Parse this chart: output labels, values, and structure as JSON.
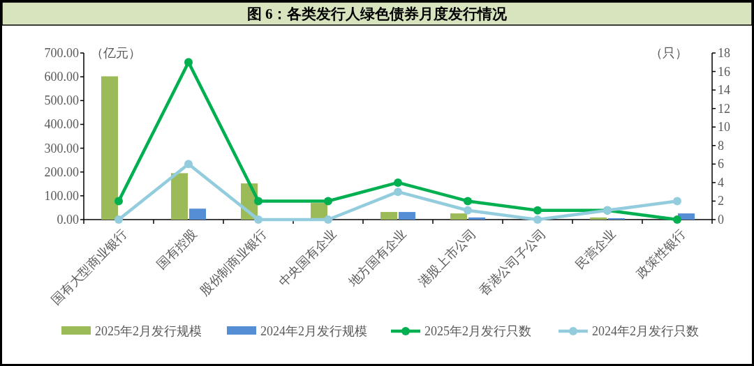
{
  "chart_data": {
    "type": "bar",
    "title": "图 6：各类发行人绿色债券月度发行情况",
    "ylabel": "（亿元）",
    "y2label": "（只）",
    "categories": [
      "国有大型商业银行",
      "国有控股",
      "股份制商业银行",
      "中央国有企业",
      "地方国有企业",
      "港股上市公司",
      "香港公司子公司",
      "民营企业",
      "政策性银行"
    ],
    "series": [
      {
        "name": "2025年2月发行规模",
        "color": "#9bbb59",
        "values": [
          602,
          195,
          152,
          70,
          32,
          26,
          null,
          9,
          0
        ]
      },
      {
        "name": "2024年2月发行规模",
        "color": "#558ed5",
        "values": [
          0,
          46,
          0,
          0,
          32,
          9,
          0,
          6,
          26
        ]
      },
      {
        "name": "2025年2月发行只数",
        "type": "line",
        "axis": "y2",
        "color": "#00b050",
        "marker": "circle",
        "values": [
          2,
          17,
          2,
          2,
          4,
          2,
          1,
          1,
          0
        ]
      },
      {
        "name": "2024年2月发行只数",
        "type": "line",
        "axis": "y2",
        "color": "#93cddd",
        "marker": "circle",
        "values": [
          0,
          6,
          0,
          0,
          3,
          1,
          0,
          1,
          2
        ]
      }
    ],
    "ylim": [
      0,
      700
    ],
    "yticks": [
      {
        "value": 0,
        "label": "0.00"
      },
      {
        "value": 100,
        "label": "100.00"
      },
      {
        "value": 200,
        "label": "200.00"
      },
      {
        "value": 300,
        "label": "300.00"
      },
      {
        "value": 400,
        "label": "400.00"
      },
      {
        "value": 500,
        "label": "500.00"
      },
      {
        "value": 600,
        "label": "600.00"
      },
      {
        "value": 700,
        "label": "700.00"
      }
    ],
    "y2lim": [
      0,
      18
    ],
    "y2ticks": [
      0,
      2,
      4,
      6,
      8,
      10,
      12,
      14,
      16,
      18
    ],
    "legend": "bottom"
  }
}
